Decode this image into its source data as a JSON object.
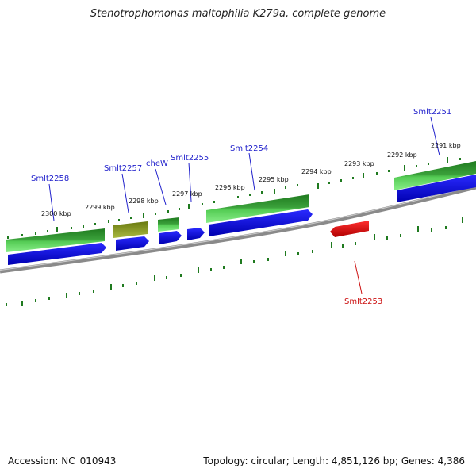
{
  "title": "Stenotrophomonas maltophilia K279a, complete genome",
  "footer": {
    "accession": "Accession: NC_010943",
    "summary": "Topology: circular; Length: 4,851,126 bp; Genes: 4,386"
  },
  "colors": {
    "gene_label": "#2222cc",
    "minus_strand_label": "#cc1111",
    "forward_arrow": "#1010e0",
    "reverse_arrow": "#e01010",
    "gene_bar_dark": "#1f7a1f",
    "gene_bar_light": "#66dd66",
    "pseudo_bar": "#7a8a1a",
    "backbone": "#777777",
    "ticks": "#1f7a1f"
  },
  "kbp_labels": [
    "2300 kbp",
    "2299 kbp",
    "2298 kbp",
    "2297 kbp",
    "2296 kbp",
    "2295 kbp",
    "2294 kbp",
    "2293 kbp",
    "2292 kbp",
    "2291 kbp"
  ],
  "gene_labels": [
    "Smlt2258",
    "Smlt2257",
    "cheW",
    "Smlt2255",
    "Smlt2254",
    "Smlt2251",
    "Smlt2253"
  ]
}
